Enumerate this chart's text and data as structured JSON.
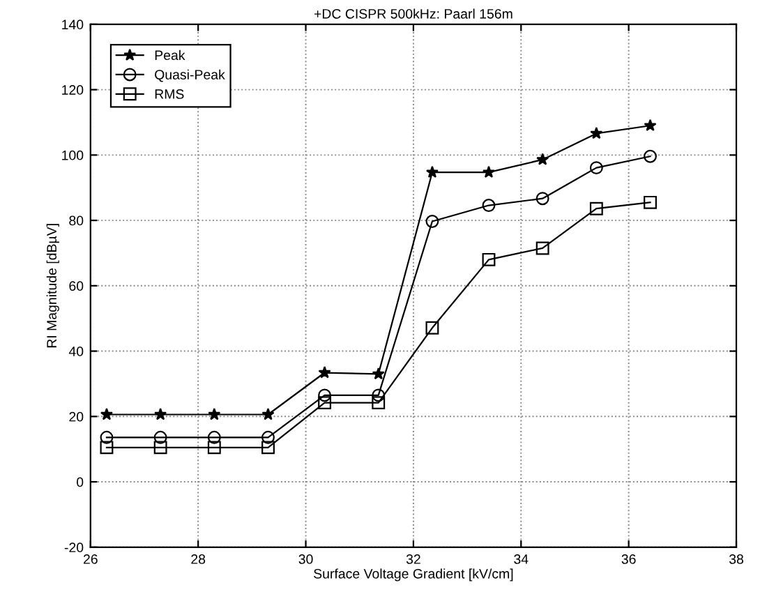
{
  "chart_data": {
    "type": "line",
    "title": "+DC CISPR 500kHz: Paarl 156m",
    "xlabel": "Surface Voltage Gradient [kV/cm]",
    "ylabel": "RI Magnitude [dBµV]",
    "x": [
      26.3,
      27.3,
      28.3,
      29.3,
      30.35,
      31.35,
      32.35,
      33.4,
      34.4,
      35.4,
      36.4
    ],
    "series": [
      {
        "name": "Peak",
        "color": "#000000",
        "marker": "star",
        "values": [
          20.6,
          20.6,
          20.6,
          20.6,
          33.4,
          33,
          94.7,
          94.7,
          98.6,
          106.6,
          109
        ]
      },
      {
        "name": "Quasi-Peak",
        "color": "#000000",
        "marker": "circle",
        "values": [
          13.6,
          13.6,
          13.6,
          13.6,
          26.5,
          26.5,
          79.7,
          84.6,
          86.7,
          96.1,
          99.6
        ]
      },
      {
        "name": "RMS",
        "color": "#000000",
        "marker": "square",
        "values": [
          10.5,
          10.5,
          10.5,
          10.5,
          24.2,
          24.2,
          47.1,
          68,
          71.5,
          83.6,
          85.5
        ]
      }
    ],
    "xlim": [
      26,
      38
    ],
    "xticks": [
      26,
      28,
      30,
      32,
      34,
      36,
      38
    ],
    "ylim": [
      -20,
      140
    ],
    "yticks": [
      -20,
      0,
      20,
      40,
      60,
      80,
      100,
      120,
      140
    ],
    "grid": true,
    "legend": "top left",
    "line_style": "solid"
  }
}
